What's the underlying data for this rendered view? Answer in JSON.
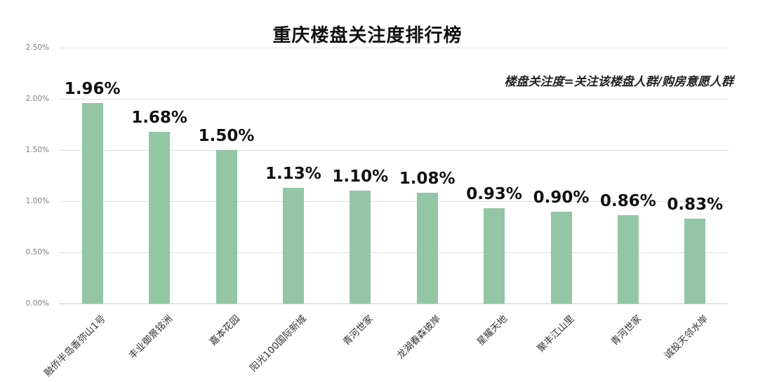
{
  "chart_data": {
    "type": "bar",
    "title": "重庆楼盘关注度排行榜",
    "annotation": "楼盘关注度=关注该楼盘人群/购房意愿人群",
    "categories": [
      "融侨半岛香弥山1号",
      "丰业御景铭洲",
      "嘉本花园",
      "阳光100国际新城",
      "青河世家",
      "龙湖春森彼岸",
      "星耀天地",
      "聚丰江山里",
      "青河世家",
      "诚投天邻水岸"
    ],
    "values": [
      1.96,
      1.68,
      1.5,
      1.13,
      1.1,
      1.08,
      0.93,
      0.9,
      0.86,
      0.83
    ],
    "data_labels": [
      "1.96%",
      "1.68%",
      "1.50%",
      "1.13%",
      "1.10%",
      "1.08%",
      "0.93%",
      "0.90%",
      "0.86%",
      "0.83%"
    ],
    "xlabel": "",
    "ylabel": "",
    "ylim": [
      0,
      2.5
    ],
    "y_ticks": [
      "0.00%",
      "0.50%",
      "1.00%",
      "1.50%",
      "2.00%",
      "2.50%"
    ],
    "grid": "horizontal gridlines on",
    "legend": "none",
    "colors": {
      "bar": "#92c6a5",
      "gridline": "#dedede",
      "baseline": "#c9c9c9",
      "data_label": "#111111",
      "y_tick": "#7f7f7f",
      "x_label": "#333333",
      "title": "#111111"
    }
  }
}
